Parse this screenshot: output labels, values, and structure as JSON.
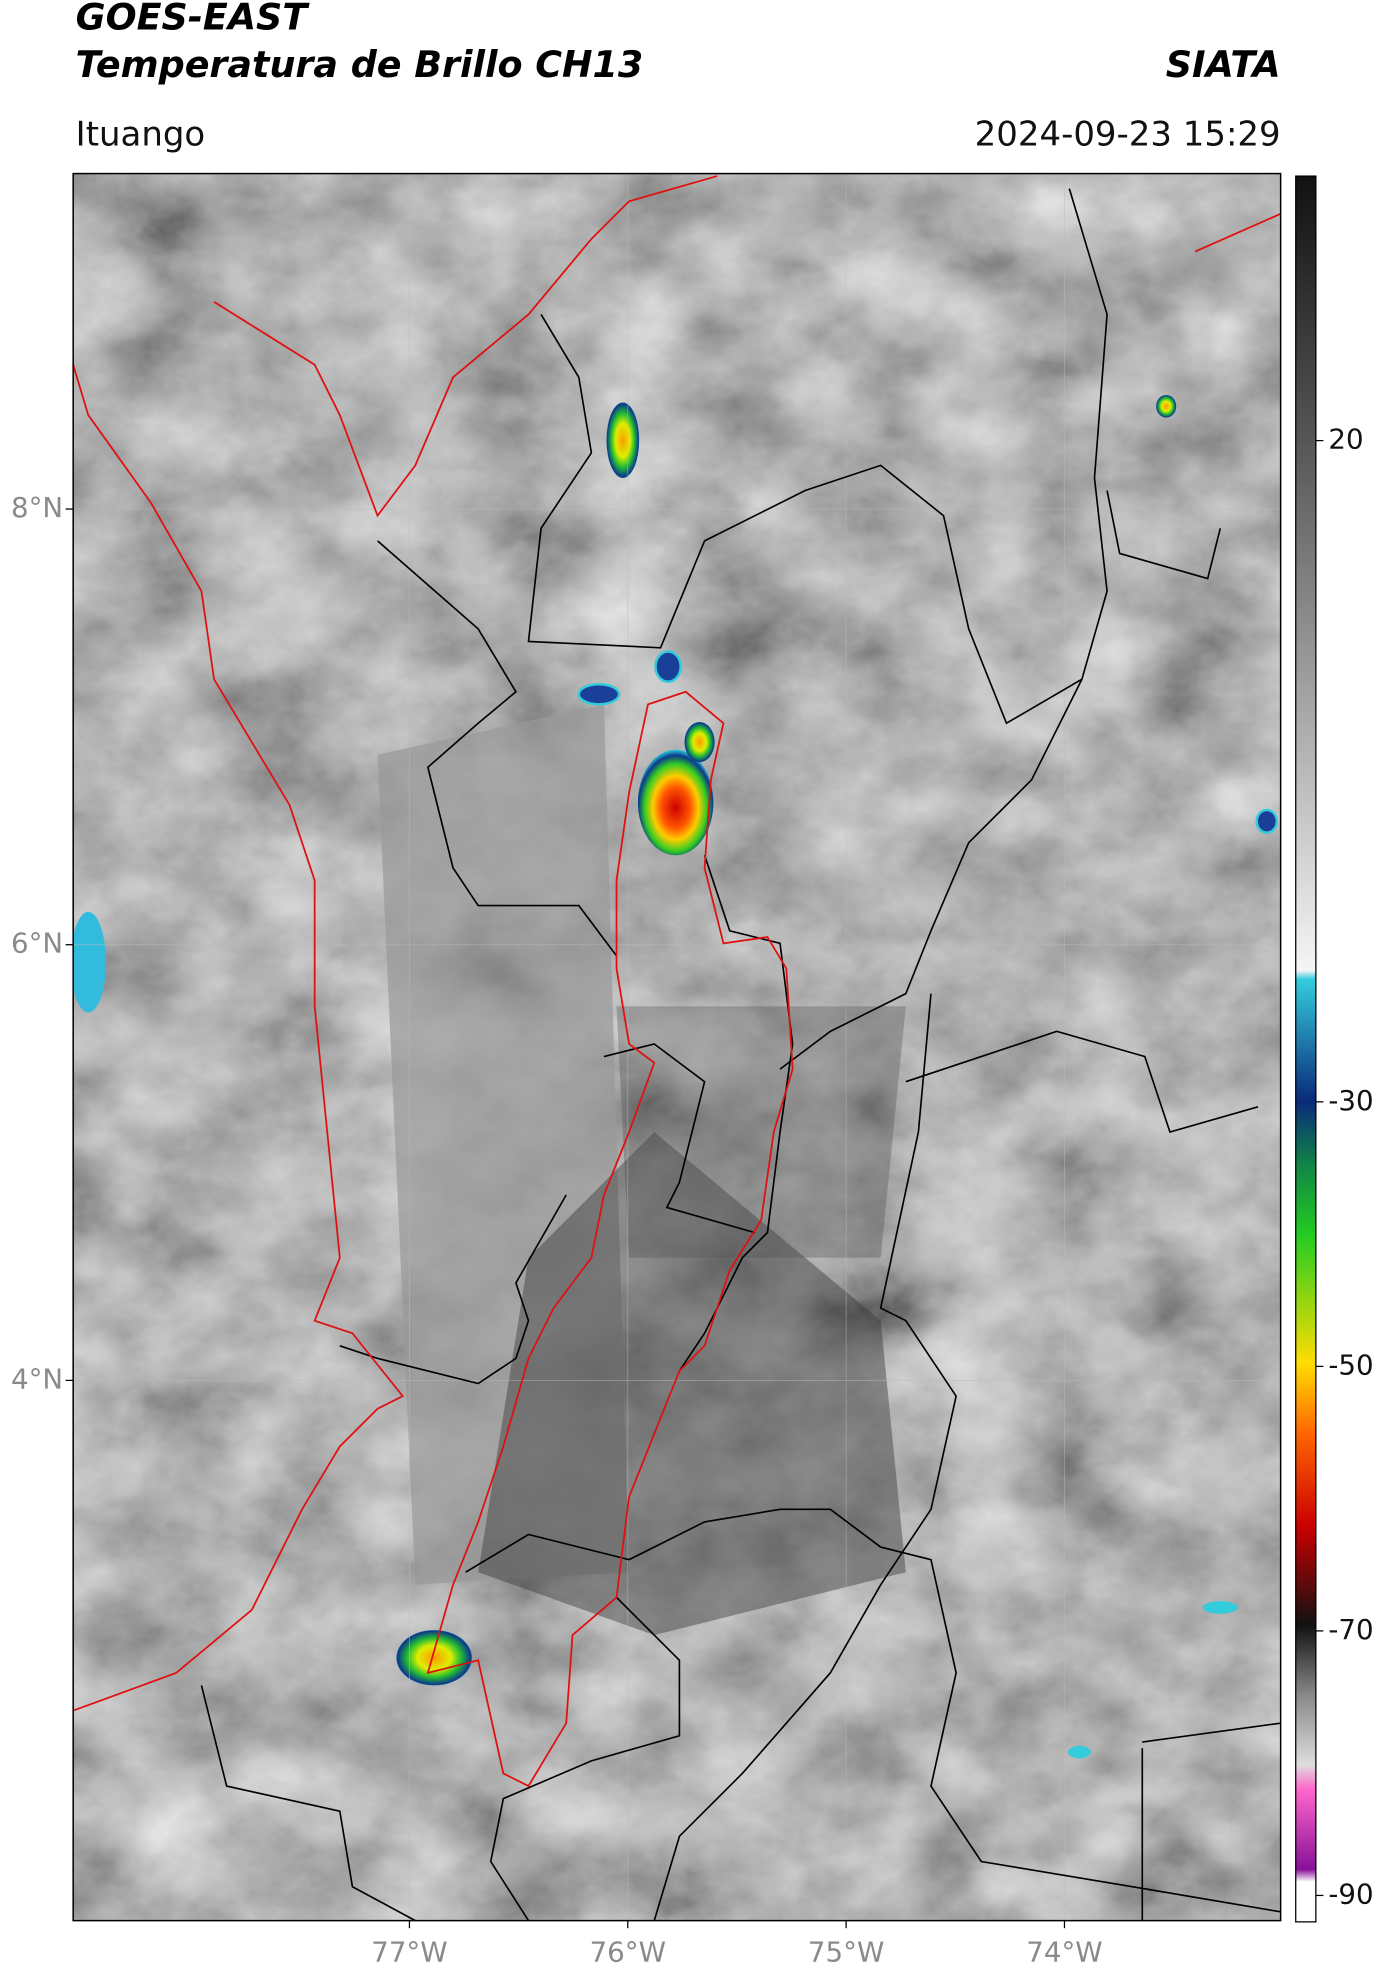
{
  "header": {
    "title_line1": "GOES-EAST",
    "title_line2": "Temperatura de Brillo CH13",
    "brand": "SIATA",
    "location": "Ituango",
    "datetime": "2024-09-23 15:29"
  },
  "map": {
    "lon_range": [
      -78.54,
      -73.01
    ],
    "lat_range": [
      1.52,
      9.54
    ],
    "lat_ticks": [
      {
        "value": 8,
        "label": "8°N"
      },
      {
        "value": 6,
        "label": "6°N"
      },
      {
        "value": 4,
        "label": "4°N"
      }
    ],
    "lon_ticks": [
      {
        "value": -77,
        "label": "77°W"
      },
      {
        "value": -76,
        "label": "76°W"
      },
      {
        "value": -75,
        "label": "75°W"
      },
      {
        "value": -74,
        "label": "74°W"
      }
    ]
  },
  "colorbar": {
    "range": [
      -92,
      40
    ],
    "ticks": [
      20,
      -30,
      -50,
      -70,
      -90
    ]
  }
}
